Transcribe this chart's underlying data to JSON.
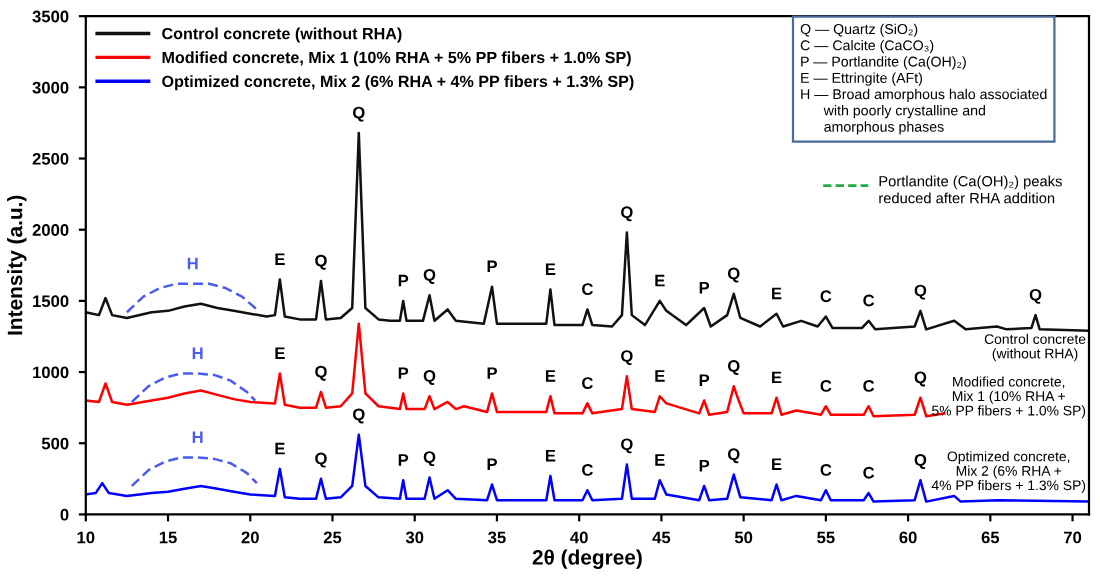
{
  "chart_data": {
    "type": "line",
    "xlabel": "2θ (degree)",
    "ylabel": "Intensity (a.u.)",
    "xlim": [
      10,
      71
    ],
    "xticks": [
      10,
      15,
      20,
      25,
      30,
      35,
      40,
      45,
      50,
      55,
      60,
      65,
      70
    ],
    "ylim": [
      0,
      3500
    ],
    "yticks": [
      0,
      500,
      1000,
      1500,
      2000,
      2500,
      3000,
      3500
    ],
    "grid": false,
    "legend": "top left",
    "series": [
      {
        "name": "Control concrete (without RHA)",
        "color": "#111111",
        "x": [
          10,
          10.8,
          11.2,
          11.6,
          12.5,
          14,
          15,
          16,
          17,
          18,
          19,
          20,
          21,
          21.5,
          21.8,
          22.1,
          23,
          24,
          24.3,
          24.6,
          25.5,
          26.2,
          26.6,
          27,
          27.8,
          28.5,
          29.1,
          29.3,
          29.5,
          30.5,
          30.9,
          31.2,
          32,
          32.5,
          34.2,
          34.7,
          35,
          37,
          38,
          38.25,
          38.5,
          40.2,
          40.5,
          40.8,
          42,
          42.6,
          42.9,
          43.2,
          44,
          44.9,
          45.3,
          46.5,
          47.6,
          48,
          49,
          49.4,
          49.8,
          51,
          52,
          52.4,
          53.5,
          54.5,
          55,
          55.4,
          57.2,
          57.6,
          58,
          60.4,
          60.75,
          61.1,
          62.8,
          63.5,
          65.4,
          66,
          67.5,
          67.75,
          68,
          71
        ],
        "values": [
          1420,
          1400,
          1520,
          1400,
          1380,
          1420,
          1430,
          1460,
          1480,
          1450,
          1430,
          1410,
          1390,
          1400,
          1650,
          1390,
          1370,
          1370,
          1640,
          1370,
          1380,
          1450,
          2680,
          1450,
          1370,
          1360,
          1360,
          1500,
          1360,
          1360,
          1540,
          1360,
          1440,
          1360,
          1340,
          1600,
          1340,
          1340,
          1340,
          1580,
          1330,
          1330,
          1440,
          1330,
          1320,
          1400,
          1980,
          1400,
          1330,
          1500,
          1430,
          1330,
          1450,
          1320,
          1400,
          1550,
          1380,
          1320,
          1410,
          1320,
          1360,
          1320,
          1390,
          1310,
          1310,
          1360,
          1300,
          1320,
          1430,
          1300,
          1360,
          1300,
          1320,
          1300,
          1310,
          1400,
          1300,
          1290
        ]
      },
      {
        "name": "Modified concrete, Mix 1 (10% RHA + 5% PP fibers + 1.0% SP)",
        "color": "#ff0000",
        "x": [
          10,
          10.8,
          11.2,
          11.6,
          12.5,
          14,
          15,
          16,
          17,
          18,
          19,
          20,
          21.5,
          21.8,
          22.1,
          23,
          24,
          24.3,
          24.6,
          25.5,
          26.2,
          26.6,
          27,
          27.8,
          29.1,
          29.3,
          29.5,
          30.6,
          30.9,
          31.2,
          32,
          32.5,
          33,
          34.4,
          34.7,
          35,
          38,
          38.25,
          38.5,
          40.2,
          40.5,
          40.8,
          42.6,
          42.9,
          43.2,
          44.6,
          44.9,
          45.3,
          47.3,
          47.6,
          47.9,
          49,
          49.4,
          49.7,
          50,
          51.7,
          52,
          52.3,
          53.2,
          54.7,
          55,
          55.3,
          57.3,
          57.6,
          57.9,
          60.4,
          60.75,
          61.1,
          62.2
        ],
        "values": [
          800,
          790,
          920,
          790,
          770,
          800,
          820,
          850,
          870,
          840,
          810,
          790,
          780,
          990,
          770,
          750,
          750,
          860,
          750,
          760,
          850,
          1340,
          850,
          760,
          740,
          850,
          740,
          740,
          830,
          740,
          790,
          740,
          760,
          720,
          850,
          720,
          720,
          830,
          710,
          710,
          780,
          710,
          740,
          970,
          740,
          720,
          830,
          780,
          710,
          800,
          700,
          720,
          900,
          800,
          710,
          710,
          820,
          700,
          730,
          700,
          760,
          700,
          700,
          760,
          690,
          700,
          820,
          690,
          710
        ]
      },
      {
        "name": "Optimized concrete, Mix 2 (6% RHA + 4% PP fibers + 1.3% SP)",
        "color": "#0000ff",
        "x": [
          10,
          10.6,
          11,
          11.4,
          12.5,
          14,
          15,
          16,
          17,
          18,
          19,
          20,
          21.5,
          21.8,
          22.1,
          23,
          24,
          24.3,
          24.6,
          25.5,
          26.2,
          26.6,
          27,
          27.8,
          29.1,
          29.3,
          29.5,
          30.6,
          30.9,
          31.2,
          32,
          32.5,
          34.4,
          34.7,
          35,
          38,
          38.25,
          38.5,
          40.2,
          40.5,
          40.8,
          42.6,
          42.9,
          43.2,
          44.6,
          44.9,
          45.3,
          47.3,
          47.6,
          47.9,
          49,
          49.4,
          49.8,
          51.7,
          52,
          52.3,
          53.2,
          54.7,
          55,
          55.3,
          57.3,
          57.6,
          57.9,
          60.4,
          60.75,
          61.1,
          62.8,
          63.2,
          65.5,
          71
        ],
        "values": [
          140,
          150,
          220,
          150,
          130,
          150,
          160,
          180,
          200,
          180,
          160,
          140,
          130,
          320,
          120,
          110,
          110,
          250,
          110,
          120,
          200,
          560,
          200,
          120,
          110,
          240,
          110,
          110,
          260,
          110,
          170,
          110,
          100,
          210,
          100,
          100,
          270,
          100,
          100,
          170,
          100,
          110,
          350,
          110,
          110,
          240,
          140,
          100,
          200,
          100,
          110,
          280,
          120,
          100,
          210,
          100,
          130,
          100,
          170,
          100,
          100,
          150,
          90,
          100,
          240,
          90,
          130,
          90,
          100,
          90
        ]
      },
      {
        "color": "#4a5cf0",
        "line_style": "dashed",
        "x": [
          12.5,
          13.5,
          14.5,
          15.5,
          16.5,
          17.5,
          18.5,
          19.5,
          20.5
        ],
        "values": [
          1420,
          1530,
          1590,
          1620,
          1620,
          1620,
          1590,
          1530,
          1430
        ]
      },
      {
        "color": "#4a5cf0",
        "line_style": "dashed",
        "x": [
          12.8,
          13.8,
          14.8,
          15.8,
          16.8,
          17.8,
          18.8,
          19.8,
          20.3
        ],
        "values": [
          790,
          900,
          960,
          990,
          990,
          980,
          940,
          860,
          800
        ]
      },
      {
        "color": "#4a5cf0",
        "line_style": "dashed",
        "x": [
          12.8,
          13.8,
          14.8,
          15.8,
          16.8,
          17.8,
          18.8,
          19.8,
          20.4
        ],
        "values": [
          200,
          310,
          370,
          400,
          400,
          390,
          360,
          290,
          220
        ]
      }
    ],
    "annotations": [
      "Q — Quartz (SiO₂)\nC — Calcite (CaCO₃)\nP — Portlandite (Ca(OH)₂)\nE — Ettringite (AFt)\nH — Broad amorphous halo associated\n      with poorly crystalline and\n      amorphous phases",
      "Control concrete\n(without RHA)",
      "Modified concrete,\nMix 1 (10% RHA +\n5% PP fibers + 1.0% SP)",
      "Optimized concrete,\nMix 2 (6% RHA +\n4% PP fibers + 1.3% SP)",
      "Portlandite (Ca(OH)₂) peaks\nreduced after RHA addition",
      {
        "text": "H",
        "x": 16.5,
        "y": 1620
      },
      {
        "text": "H",
        "x": 16.8,
        "y": 990
      },
      {
        "text": "H",
        "x": 16.8,
        "y": 400
      },
      {
        "text": "E",
        "x": 21.8,
        "y": 1650
      },
      {
        "text": "Q",
        "x": 24.3,
        "y": 1640
      },
      {
        "text": "Q",
        "x": 26.6,
        "y": 2680
      },
      {
        "text": "P",
        "x": 29.3,
        "y": 1500
      },
      {
        "text": "Q",
        "x": 30.9,
        "y": 1540
      },
      {
        "text": "P",
        "x": 34.7,
        "y": 1600
      },
      {
        "text": "E",
        "x": 38.25,
        "y": 1580
      },
      {
        "text": "C",
        "x": 40.5,
        "y": 1440
      },
      {
        "text": "Q",
        "x": 42.9,
        "y": 1980
      },
      {
        "text": "E",
        "x": 44.9,
        "y": 1500
      },
      {
        "text": "P",
        "x": 47.6,
        "y": 1450
      },
      {
        "text": "Q",
        "x": 49.4,
        "y": 1550
      },
      {
        "text": "E",
        "x": 52.0,
        "y": 1410
      },
      {
        "text": "C",
        "x": 55.0,
        "y": 1390
      },
      {
        "text": "C",
        "x": 57.6,
        "y": 1360
      },
      {
        "text": "Q",
        "x": 60.75,
        "y": 1430
      },
      {
        "text": "Q",
        "x": 67.75,
        "y": 1400
      },
      {
        "text": "E",
        "x": 21.8,
        "y": 990
      },
      {
        "text": "Q",
        "x": 24.3,
        "y": 860
      },
      {
        "text": "P",
        "x": 29.3,
        "y": 850
      },
      {
        "text": "Q",
        "x": 30.9,
        "y": 830
      },
      {
        "text": "P",
        "x": 34.7,
        "y": 850
      },
      {
        "text": "E",
        "x": 38.25,
        "y": 830
      },
      {
        "text": "C",
        "x": 40.5,
        "y": 780
      },
      {
        "text": "Q",
        "x": 42.9,
        "y": 970
      },
      {
        "text": "E",
        "x": 44.9,
        "y": 830
      },
      {
        "text": "P",
        "x": 47.6,
        "y": 800
      },
      {
        "text": "Q",
        "x": 49.4,
        "y": 900
      },
      {
        "text": "E",
        "x": 52.0,
        "y": 820
      },
      {
        "text": "C",
        "x": 55.0,
        "y": 760
      },
      {
        "text": "C",
        "x": 57.6,
        "y": 760
      },
      {
        "text": "Q",
        "x": 60.75,
        "y": 820
      },
      {
        "text": "E",
        "x": 21.8,
        "y": 320
      },
      {
        "text": "Q",
        "x": 24.3,
        "y": 250
      },
      {
        "text": "Q",
        "x": 26.6,
        "y": 560
      },
      {
        "text": "P",
        "x": 29.3,
        "y": 240
      },
      {
        "text": "Q",
        "x": 30.9,
        "y": 260
      },
      {
        "text": "P",
        "x": 34.7,
        "y": 210
      },
      {
        "text": "E",
        "x": 38.25,
        "y": 270
      },
      {
        "text": "C",
        "x": 40.5,
        "y": 170
      },
      {
        "text": "Q",
        "x": 42.9,
        "y": 350
      },
      {
        "text": "E",
        "x": 44.9,
        "y": 240
      },
      {
        "text": "P",
        "x": 47.6,
        "y": 200
      },
      {
        "text": "Q",
        "x": 49.4,
        "y": 280
      },
      {
        "text": "E",
        "x": 52.0,
        "y": 210
      },
      {
        "text": "C",
        "x": 55.0,
        "y": 170
      },
      {
        "text": "C",
        "x": 57.6,
        "y": 150
      },
      {
        "text": "Q",
        "x": 60.75,
        "y": 240
      }
    ]
  }
}
